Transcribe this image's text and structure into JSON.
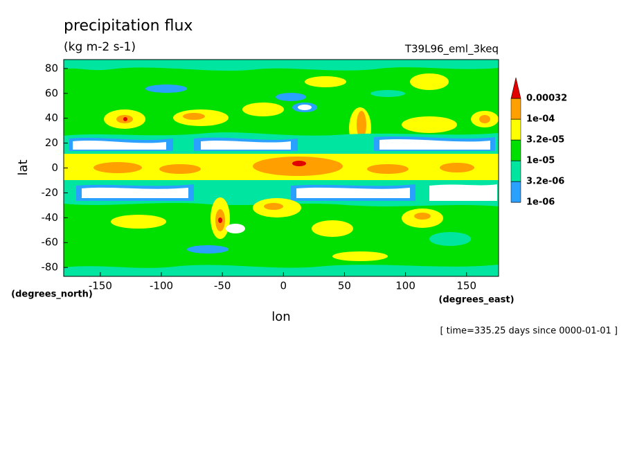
{
  "chart_data": {
    "type": "contour",
    "title": "precipitation flux",
    "subtitle": "(kg m-2 s-1)",
    "annotation": "T39L96_eml_3keq",
    "footer": "[ time=335.25 days since 0000-01-01 ]",
    "x_label": "lon",
    "y_label": "lat",
    "x_units": "(degrees_east)",
    "y_units": "(degrees_north)",
    "xlim": [
      -180,
      176.25
    ],
    "ylim": [
      -87.16,
      87.16
    ],
    "xticks": [
      -150,
      -100,
      -50,
      0,
      50,
      100,
      150
    ],
    "yticks": [
      -80,
      -60,
      -40,
      -20,
      0,
      20,
      40,
      60,
      80
    ],
    "levels": [
      {
        "value": 1e-06,
        "label": "1e-06"
      },
      {
        "value": 3.2e-06,
        "label": "3.2e-06"
      },
      {
        "value": 1e-05,
        "label": "1e-05"
      },
      {
        "value": 3.2e-05,
        "label": "3.2e-05"
      },
      {
        "value": 0.0001,
        "label": "1e-04"
      },
      0.00032
    ],
    "level_colors": [
      "#2aa0ff",
      "#00e6a0",
      "#00e000",
      "#ffff00",
      "#ffa000",
      "#e00000"
    ]
  }
}
